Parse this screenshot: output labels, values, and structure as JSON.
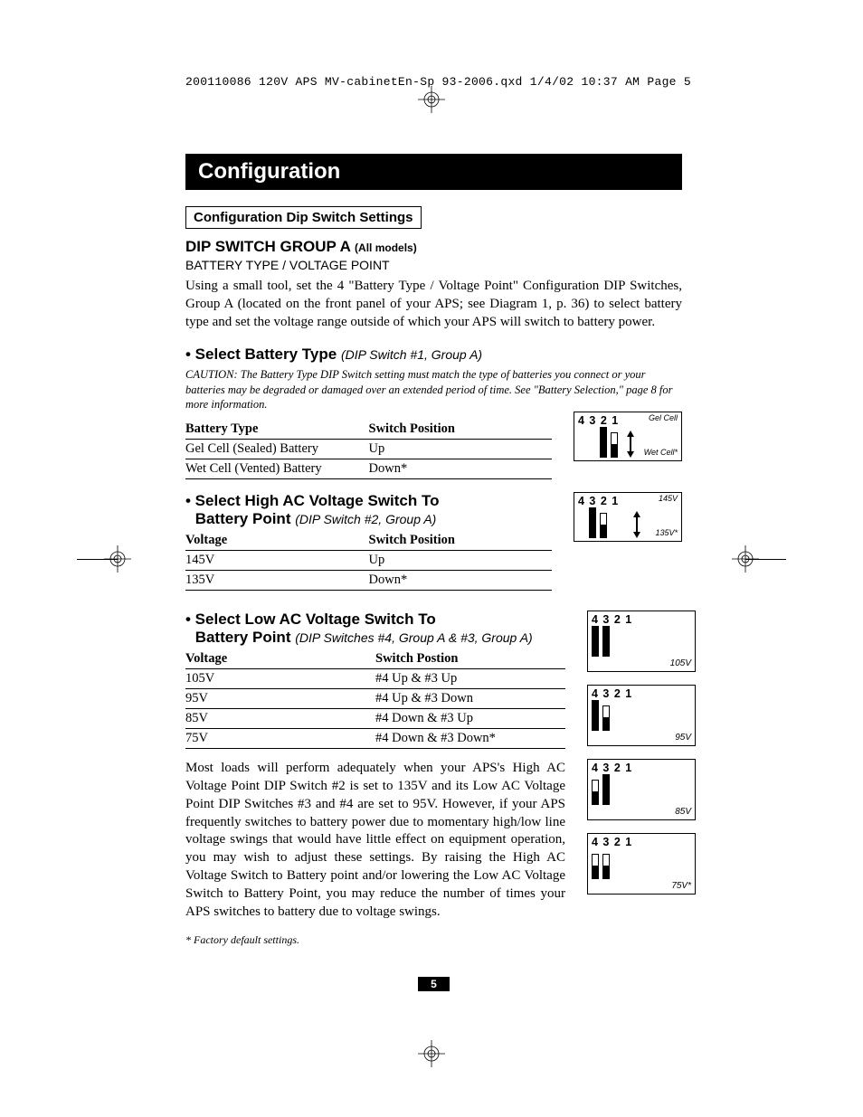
{
  "print_header": "200110086 120V APS MV-cabinetEn-Sp 93-2006.qxd  1/4/02  10:37 AM  Page 5",
  "title": "Configuration",
  "boxed_subtitle": "Configuration Dip Switch Settings",
  "group_a_heading": "DIP SWITCH GROUP A",
  "group_a_models": "(All models)",
  "group_a_subline": "BATTERY TYPE / VOLTAGE POINT",
  "intro_body": "Using a small tool, set the 4 \"Battery Type / Voltage Point\" Configuration DIP Switches, Group A (located on the front panel of your APS; see Diagram 1, p. 36) to select battery type and set the voltage range outside of which your APS will switch to battery power.",
  "sec1": {
    "bullet": "• Select Battery Type",
    "note": "(DIP Switch #1, Group A)",
    "caution": "CAUTION: The Battery Type DIP Switch setting must match the type of batteries you connect or your batteries may be degraded or damaged over an extended period of time. See \"Battery Selection,\" page 8 for more information.",
    "col1": "Battery Type",
    "col2": "Switch Position",
    "rows": [
      {
        "a": "Gel Cell (Sealed) Battery",
        "b": "Up"
      },
      {
        "a": "Wet Cell (Vented) Battery",
        "b": "Down*"
      }
    ],
    "dip": {
      "nums": "4 3 2 1",
      "label_top": "Gel Cell",
      "label_bot": "Wet Cell*"
    }
  },
  "sec2": {
    "bullet": "• Select High AC Voltage Switch To",
    "bullet2": "Battery Point",
    "note": "(DIP Switch #2, Group A)",
    "col1": "Voltage",
    "col2": "Switch Position",
    "rows": [
      {
        "a": "145V",
        "b": "Up"
      },
      {
        "a": "135V",
        "b": "Down*"
      }
    ],
    "dip": {
      "nums": "4 3 2 1",
      "label_top": "145V",
      "label_bot": "135V*"
    }
  },
  "sec3": {
    "bullet": "• Select Low AC Voltage Switch To",
    "bullet2": "Battery Point",
    "note": "(DIP Switches #4, Group A & #3, Group A)",
    "col1": "Voltage",
    "col2": "Switch Postion",
    "rows": [
      {
        "a": "105V",
        "b": "#4 Up & #3 Up"
      },
      {
        "a": "95V",
        "b": "#4 Up & #3 Down"
      },
      {
        "a": "85V",
        "b": "#4 Down & #3 Up"
      },
      {
        "a": "75V",
        "b": "#4 Down & #3 Down*"
      }
    ],
    "dips": [
      {
        "nums": "4 3 2 1",
        "label": "105V",
        "sw4": "full",
        "sw3": "full"
      },
      {
        "nums": "4 3 2 1",
        "label": "95V",
        "sw4": "full",
        "sw3": "down"
      },
      {
        "nums": "4 3 2 1",
        "label": "85V",
        "sw4": "down",
        "sw3": "full"
      },
      {
        "nums": "4 3 2 1",
        "label": "75V*",
        "sw4": "down",
        "sw3": "down"
      }
    ]
  },
  "closing_body": "Most loads will perform adequately when your APS's High AC Voltage Point DIP Switch #2 is set to 135V and its Low AC Voltage Point DIP Switches #3 and #4 are set to 95V. However, if your APS frequently switches to battery power due to momentary high/low line voltage swings that would have little effect on equipment operation, you may wish to adjust these settings. By raising the High AC Voltage Switch to Battery point and/or lowering the Low AC Voltage Switch to Battery Point, you may reduce the number of times your APS switches to battery due to voltage swings.",
  "footnote": "* Factory default settings.",
  "page_num": "5"
}
